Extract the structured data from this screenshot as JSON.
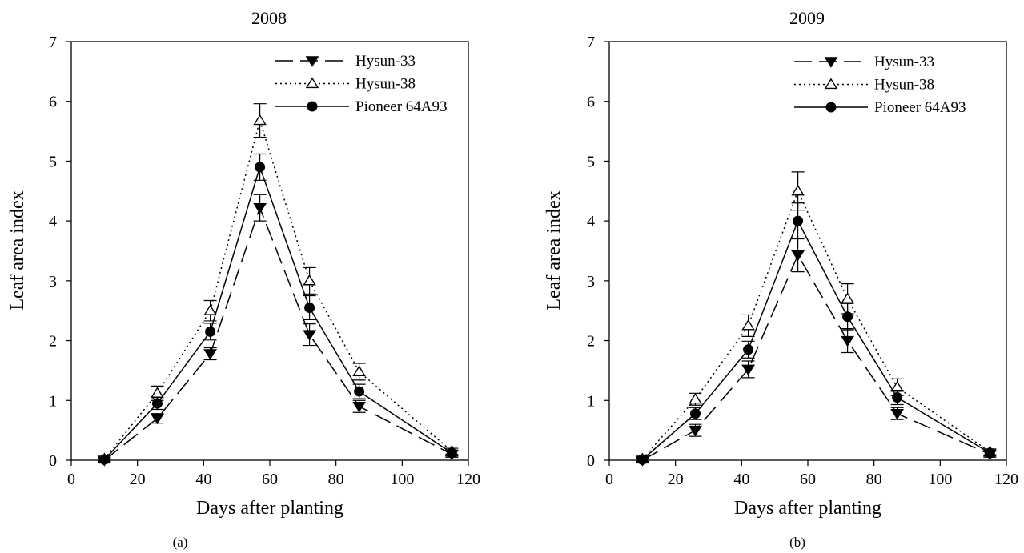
{
  "chart_data": [
    {
      "type": "line",
      "title": "2008",
      "caption": "(a)",
      "xlabel": "Days after planting",
      "ylabel": "Leaf area index",
      "xlim": [
        0,
        120
      ],
      "ylim": [
        0,
        7
      ],
      "xticks": [
        "0",
        "20",
        "40",
        "60",
        "80",
        "100",
        "120"
      ],
      "yticks": [
        "0",
        "1",
        "2",
        "3",
        "4",
        "5",
        "6",
        "7"
      ],
      "grid": false,
      "legend_position": "top-right",
      "series": [
        {
          "name": "Hysun-33",
          "style": "dashed",
          "marker": "triangle-down-filled",
          "x": [
            10,
            26,
            42,
            57,
            72,
            87,
            115
          ],
          "y": [
            0.0,
            0.7,
            1.78,
            4.22,
            2.1,
            0.9,
            0.1
          ],
          "err": [
            0.03,
            0.08,
            0.1,
            0.22,
            0.18,
            0.1,
            0.05
          ]
        },
        {
          "name": "Hysun-38",
          "style": "dotted",
          "marker": "triangle-up-open",
          "x": [
            10,
            26,
            42,
            57,
            72,
            87,
            115
          ],
          "y": [
            0.02,
            1.12,
            2.5,
            5.68,
            3.0,
            1.48,
            0.15
          ],
          "err": [
            0.03,
            0.12,
            0.17,
            0.28,
            0.22,
            0.14,
            0.05
          ]
        },
        {
          "name": "Pioneer 64A93",
          "style": "solid",
          "marker": "circle-filled",
          "x": [
            10,
            26,
            42,
            57,
            72,
            87,
            115
          ],
          "y": [
            0.01,
            0.95,
            2.15,
            4.9,
            2.55,
            1.15,
            0.12
          ],
          "err": [
            0.03,
            0.1,
            0.14,
            0.22,
            0.2,
            0.12,
            0.05
          ]
        }
      ]
    },
    {
      "type": "line",
      "title": "2009",
      "caption": "(b)",
      "xlabel": "Days after planting",
      "ylabel": "Leaf area index",
      "xlim": [
        0,
        120
      ],
      "ylim": [
        0,
        7
      ],
      "xticks": [
        "0",
        "20",
        "40",
        "60",
        "80",
        "100",
        "120"
      ],
      "yticks": [
        "0",
        "1",
        "2",
        "3",
        "4",
        "5",
        "6",
        "7"
      ],
      "grid": false,
      "legend_position": "top-right",
      "series": [
        {
          "name": "Hysun-33",
          "style": "dashed",
          "marker": "triangle-down-filled",
          "x": [
            10,
            26,
            42,
            57,
            72,
            87,
            115
          ],
          "y": [
            0.0,
            0.5,
            1.52,
            3.43,
            2.0,
            0.78,
            0.1
          ],
          "err": [
            0.03,
            0.1,
            0.14,
            0.28,
            0.2,
            0.1,
            0.05
          ]
        },
        {
          "name": "Hysun-38",
          "style": "dotted",
          "marker": "triangle-up-open",
          "x": [
            10,
            26,
            42,
            57,
            72,
            87,
            115
          ],
          "y": [
            0.02,
            1.02,
            2.25,
            4.5,
            2.7,
            1.22,
            0.14
          ],
          "err": [
            0.03,
            0.1,
            0.18,
            0.32,
            0.25,
            0.14,
            0.05
          ]
        },
        {
          "name": "Pioneer 64A93",
          "style": "solid",
          "marker": "circle-filled",
          "x": [
            10,
            26,
            42,
            57,
            72,
            87,
            115
          ],
          "y": [
            0.01,
            0.78,
            1.85,
            4.0,
            2.4,
            1.05,
            0.12
          ],
          "err": [
            0.03,
            0.1,
            0.14,
            0.3,
            0.22,
            0.12,
            0.05
          ]
        }
      ]
    }
  ]
}
